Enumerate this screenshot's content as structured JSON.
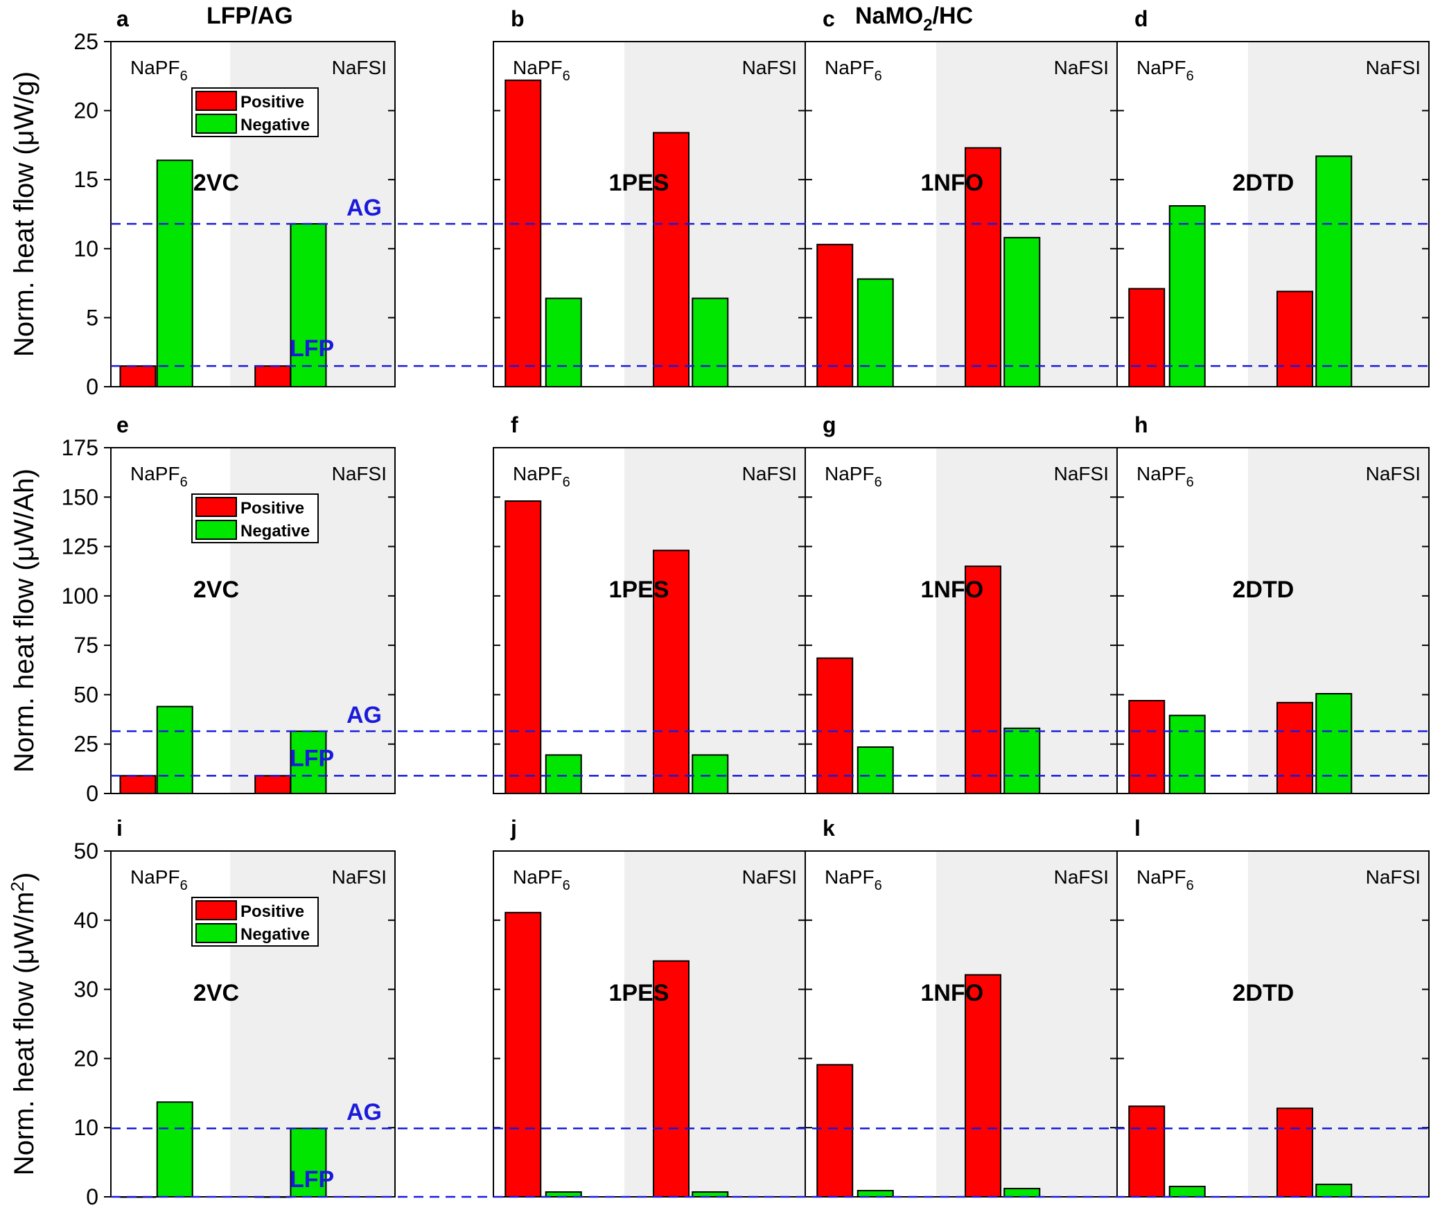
{
  "figure": {
    "titles": {
      "left": "LFP/AG",
      "right_main": "NaMO",
      "right_sub": "2",
      "right_tail": "/HC"
    },
    "salt_left": "NaPF",
    "salt_left_sub": "6",
    "salt_right": "NaFSI",
    "legend": {
      "positive": "Positive",
      "negative": "Negative"
    },
    "ref_labels": {
      "ag": "AG",
      "lfp": "LFP"
    },
    "colors": {
      "positive": "#ff0000",
      "negative": "#00e600",
      "ref_line": "#1a1adb",
      "ref_text": "#1a1adb",
      "shade": "#efefef"
    }
  },
  "chart_data": [
    {
      "type": "bar",
      "ylabel": "Norm. heat flow (μW/g)",
      "ylim": [
        0,
        25
      ],
      "yticks": [
        0,
        5,
        10,
        15,
        20,
        25
      ],
      "ref_lines": {
        "ag": 11.8,
        "lfp": 1.5
      },
      "panels": [
        {
          "letter": "a",
          "additive": "2VC",
          "positive": [
            1.5,
            1.5
          ],
          "negative": [
            16.4,
            11.8
          ]
        },
        {
          "letter": "b",
          "additive": "1PES",
          "positive": [
            22.2,
            18.4
          ],
          "negative": [
            6.4,
            6.4
          ]
        },
        {
          "letter": "c",
          "additive": "1NFO",
          "positive": [
            10.3,
            17.3
          ],
          "negative": [
            7.8,
            10.8
          ]
        },
        {
          "letter": "d",
          "additive": "2DTD",
          "positive": [
            7.1,
            6.9
          ],
          "negative": [
            13.1,
            16.7
          ]
        }
      ]
    },
    {
      "type": "bar",
      "ylabel": "Norm. heat flow (μW/Ah)",
      "ylim": [
        0,
        175
      ],
      "yticks": [
        0,
        25,
        50,
        75,
        100,
        125,
        150,
        175
      ],
      "ref_lines": {
        "ag": 31.5,
        "lfp": 9
      },
      "panels": [
        {
          "letter": "e",
          "additive": "2VC",
          "positive": [
            9,
            9
          ],
          "negative": [
            44,
            31.5
          ]
        },
        {
          "letter": "f",
          "additive": "1PES",
          "positive": [
            148,
            123
          ],
          "negative": [
            19.5,
            19.5
          ]
        },
        {
          "letter": "g",
          "additive": "1NFO",
          "positive": [
            68.5,
            115
          ],
          "negative": [
            23.5,
            33
          ]
        },
        {
          "letter": "h",
          "additive": "2DTD",
          "positive": [
            47,
            46
          ],
          "negative": [
            39.5,
            50.5
          ]
        }
      ]
    },
    {
      "type": "bar",
      "ylabel": "Norm. heat flow (μW/m",
      "ylabel_sup": "2",
      "ylabel_tail": ")",
      "ylim": [
        0,
        50
      ],
      "yticks": [
        0,
        10,
        20,
        30,
        40,
        50
      ],
      "ref_lines": {
        "ag": 9.9,
        "lfp": 0
      },
      "panels": [
        {
          "letter": "i",
          "additive": "2VC",
          "positive": [
            0,
            0
          ],
          "negative": [
            13.7,
            9.9
          ]
        },
        {
          "letter": "j",
          "additive": "1PES",
          "positive": [
            41.1,
            34.1
          ],
          "negative": [
            0.7,
            0.7
          ]
        },
        {
          "letter": "k",
          "additive": "1NFO",
          "positive": [
            19.1,
            32.1
          ],
          "negative": [
            0.9,
            1.2
          ]
        },
        {
          "letter": "l",
          "additive": "2DTD",
          "positive": [
            13.1,
            12.8
          ],
          "negative": [
            1.5,
            1.8
          ]
        }
      ]
    }
  ]
}
